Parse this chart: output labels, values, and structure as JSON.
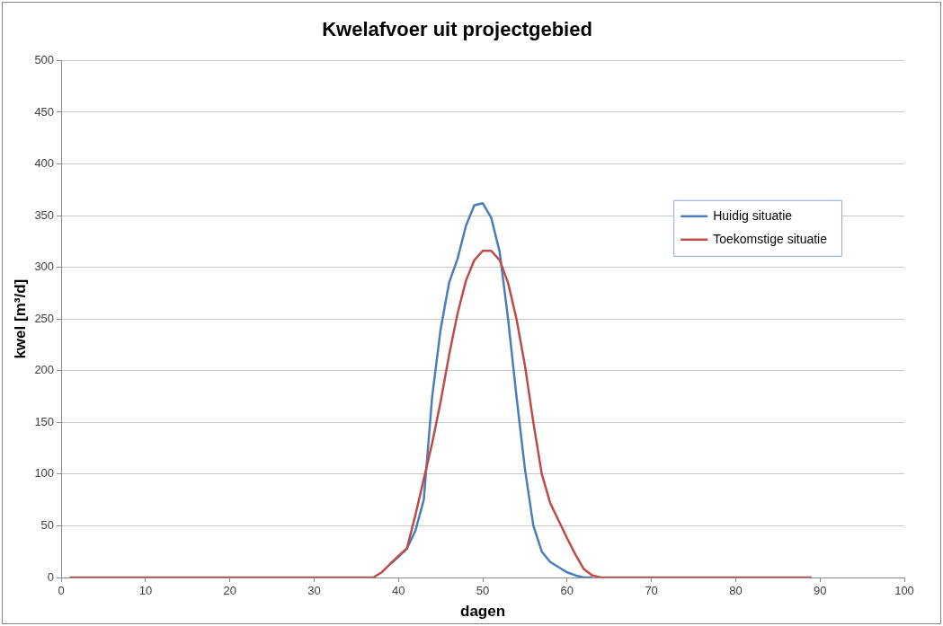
{
  "chart_data": {
    "type": "line",
    "title": "Kwelafvoer uit projectgebied",
    "xlabel": "dagen",
    "ylabel": "kwel [m³/d]",
    "x": [
      1,
      2,
      3,
      4,
      5,
      6,
      7,
      8,
      9,
      10,
      11,
      12,
      13,
      14,
      15,
      16,
      17,
      18,
      19,
      20,
      21,
      22,
      23,
      24,
      25,
      26,
      27,
      28,
      29,
      30,
      31,
      32,
      33,
      34,
      35,
      36,
      37,
      38,
      39,
      40,
      41,
      42,
      43,
      44,
      45,
      46,
      47,
      48,
      49,
      50,
      51,
      52,
      53,
      54,
      55,
      56,
      57,
      58,
      59,
      60,
      61,
      62,
      63,
      64,
      65,
      66,
      67,
      68,
      69,
      70,
      71,
      72,
      73,
      74,
      75,
      76,
      77,
      78,
      79,
      80,
      81,
      82,
      83,
      84,
      85,
      86,
      87,
      88,
      89
    ],
    "series": [
      {
        "name": "Huidig situatie",
        "color": "#4a7ebb",
        "values": [
          null,
          null,
          null,
          null,
          null,
          null,
          null,
          null,
          null,
          null,
          null,
          null,
          null,
          null,
          null,
          null,
          null,
          null,
          null,
          null,
          null,
          null,
          null,
          null,
          null,
          null,
          null,
          null,
          null,
          null,
          null,
          null,
          null,
          null,
          null,
          null,
          null,
          null,
          13,
          20,
          28,
          45,
          75,
          175,
          240,
          285,
          308,
          340,
          360,
          362,
          348,
          315,
          250,
          175,
          105,
          50,
          25,
          15,
          10,
          5,
          2,
          0,
          0,
          null,
          null,
          null,
          null,
          null,
          null,
          null,
          null,
          null,
          null,
          null,
          null,
          null,
          null,
          null,
          null,
          null,
          null,
          null,
          null,
          null,
          null,
          null,
          null,
          null,
          null
        ]
      },
      {
        "name": "Toekomstige situatie",
        "color": "#be4b48",
        "values": [
          0,
          0,
          0,
          0,
          0,
          0,
          0,
          0,
          0,
          0,
          0,
          0,
          0,
          0,
          0,
          0,
          0,
          0,
          0,
          0,
          0,
          0,
          0,
          0,
          0,
          0,
          0,
          0,
          0,
          0,
          0,
          0,
          0,
          0,
          0,
          0,
          0,
          5,
          13,
          21,
          28,
          60,
          95,
          130,
          170,
          215,
          255,
          287,
          307,
          316,
          316,
          307,
          285,
          250,
          205,
          150,
          100,
          72,
          55,
          38,
          22,
          8,
          2,
          0,
          0,
          0,
          0,
          0,
          0,
          0,
          0,
          0,
          0,
          0,
          0,
          0,
          0,
          0,
          0,
          0,
          0,
          0,
          0,
          0,
          0,
          0,
          0,
          0,
          0
        ]
      }
    ],
    "xlim": [
      0,
      100
    ],
    "xticks": [
      0,
      10,
      20,
      30,
      40,
      50,
      60,
      70,
      80,
      90,
      100
    ],
    "ylim": [
      0,
      500
    ],
    "yticks": [
      0,
      50,
      100,
      150,
      200,
      250,
      300,
      350,
      400,
      450,
      500
    ],
    "grid": "y",
    "legend": "top right",
    "marker": "none",
    "line_style": "solid"
  }
}
